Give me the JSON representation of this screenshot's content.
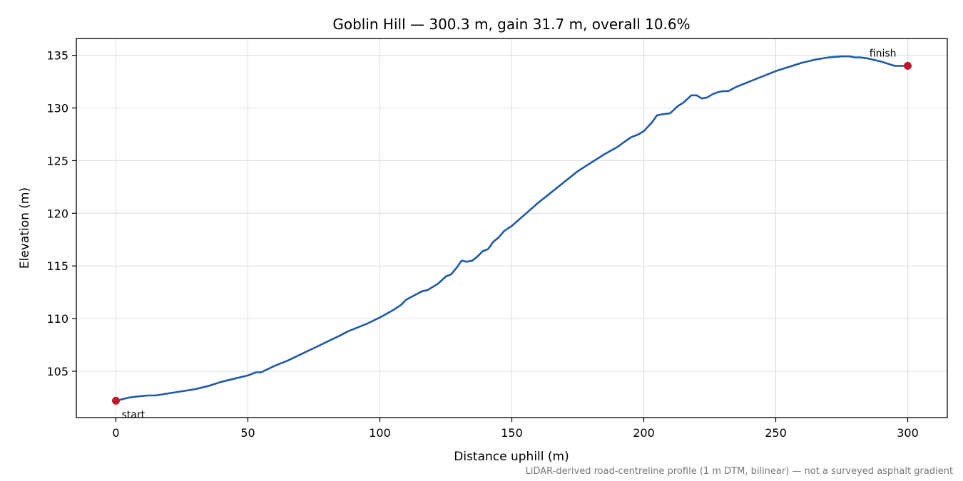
{
  "chart_data": {
    "type": "line",
    "title": "Goblin Hill — 300.3 m, gain 31.7 m, overall 10.6%",
    "xlabel": "Distance uphill (m)",
    "ylabel": "Elevation (m)",
    "xlim": [
      -15,
      315
    ],
    "ylim": [
      100.6,
      136.6
    ],
    "xticks": [
      0,
      50,
      100,
      150,
      200,
      250,
      300
    ],
    "yticks": [
      105,
      110,
      115,
      120,
      125,
      130,
      135
    ],
    "grid": true,
    "line_color": "#1f5aa6",
    "marker_color": "#c0182a",
    "series": [
      {
        "x": [
          0,
          5,
          8,
          12,
          15,
          20,
          25,
          30,
          35,
          40,
          45,
          50,
          53,
          55,
          60,
          65,
          70,
          75,
          80,
          85,
          88,
          90,
          95,
          100,
          105,
          108,
          110,
          113,
          116,
          118,
          120,
          122,
          125,
          127,
          129,
          131,
          133,
          135,
          137,
          139,
          141,
          143,
          145,
          147,
          150,
          155,
          160,
          165,
          170,
          175,
          180,
          185,
          190,
          195,
          198,
          200,
          203,
          205,
          207,
          210,
          213,
          215,
          218,
          220,
          222,
          224,
          226,
          228,
          230,
          232,
          235,
          240,
          245,
          250,
          255,
          260,
          265,
          270,
          275,
          278,
          280,
          282,
          285,
          290,
          295,
          300
        ],
        "y": [
          102.2,
          102.5,
          102.6,
          102.7,
          102.7,
          102.9,
          103.1,
          103.3,
          103.6,
          104.0,
          104.3,
          104.6,
          104.9,
          104.9,
          105.5,
          106.0,
          106.6,
          107.2,
          107.8,
          108.4,
          108.8,
          109.0,
          109.5,
          110.1,
          110.8,
          111.3,
          111.8,
          112.2,
          112.6,
          112.7,
          113.0,
          113.3,
          114.0,
          114.2,
          114.8,
          115.5,
          115.4,
          115.5,
          115.9,
          116.4,
          116.6,
          117.3,
          117.7,
          118.3,
          118.8,
          119.9,
          121.0,
          122.0,
          123.0,
          124.0,
          124.8,
          125.6,
          126.3,
          127.2,
          127.5,
          127.8,
          128.6,
          129.3,
          129.4,
          129.5,
          130.2,
          130.5,
          131.2,
          131.2,
          130.9,
          131.0,
          131.3,
          131.5,
          131.6,
          131.6,
          132.0,
          132.5,
          133.0,
          133.5,
          133.9,
          134.3,
          134.6,
          134.8,
          134.9,
          134.9,
          134.8,
          134.8,
          134.7,
          134.4,
          134.0,
          134.0
        ]
      }
    ],
    "points": [
      {
        "label": "start",
        "x": 0,
        "y": 102.2
      },
      {
        "label": "finish",
        "x": 300,
        "y": 134.0
      }
    ],
    "footnote": "LiDAR-derived road-centreline profile (1 m DTM, bilinear) — not a surveyed asphalt gradient"
  }
}
